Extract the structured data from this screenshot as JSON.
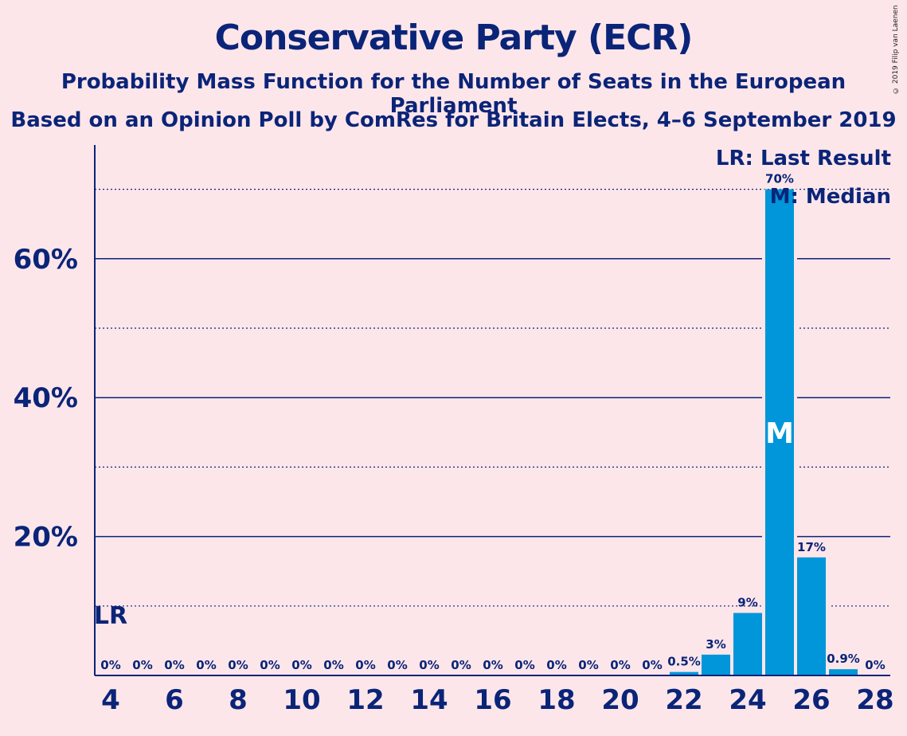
{
  "title": "Conservative Party (ECR)",
  "subtitle_1": "Probability Mass Function for the Number of Seats in the European Parliament",
  "subtitle_2": "Based on an Opinion Poll by ComRes for Britain Elects, 4–6 September 2019",
  "copyright": "© 2019 Filip van Laenen",
  "legend": {
    "last_result": "LR: Last Result",
    "median": "M: Median"
  },
  "colors": {
    "background": "#fde6ea",
    "bar": "#0096d9",
    "text": "#0a2478"
  },
  "chart_data": {
    "type": "bar",
    "title": "Conservative Party (ECR)",
    "xlabel": "",
    "ylabel": "",
    "x": [
      4,
      5,
      6,
      7,
      8,
      9,
      10,
      11,
      12,
      13,
      14,
      15,
      16,
      17,
      18,
      19,
      20,
      21,
      22,
      23,
      24,
      25,
      26,
      27,
      28
    ],
    "values": [
      0,
      0,
      0,
      0,
      0,
      0,
      0,
      0,
      0,
      0,
      0,
      0,
      0,
      0,
      0,
      0,
      0,
      0,
      0.5,
      3,
      9,
      70,
      17,
      0.9,
      0
    ],
    "labels": [
      "0%",
      "0%",
      "0%",
      "0%",
      "0%",
      "0%",
      "0%",
      "0%",
      "0%",
      "0%",
      "0%",
      "0%",
      "0%",
      "0%",
      "0%",
      "0%",
      "0%",
      "0%",
      "0.5%",
      "3%",
      "9%",
      "70%",
      "17%",
      "0.9%",
      "0%"
    ],
    "x_ticks": [
      4,
      6,
      8,
      10,
      12,
      14,
      16,
      18,
      20,
      22,
      24,
      26,
      28
    ],
    "y_ticks": [
      20,
      40,
      60
    ],
    "y_tick_labels": [
      "20%",
      "40%",
      "60%"
    ],
    "y_minor_gridlines": [
      10,
      30,
      50,
      70
    ],
    "ylim": [
      0,
      76
    ],
    "last_result_seat": 4,
    "last_result_marker": "LR",
    "median_seat": 25,
    "median_marker": "M"
  }
}
